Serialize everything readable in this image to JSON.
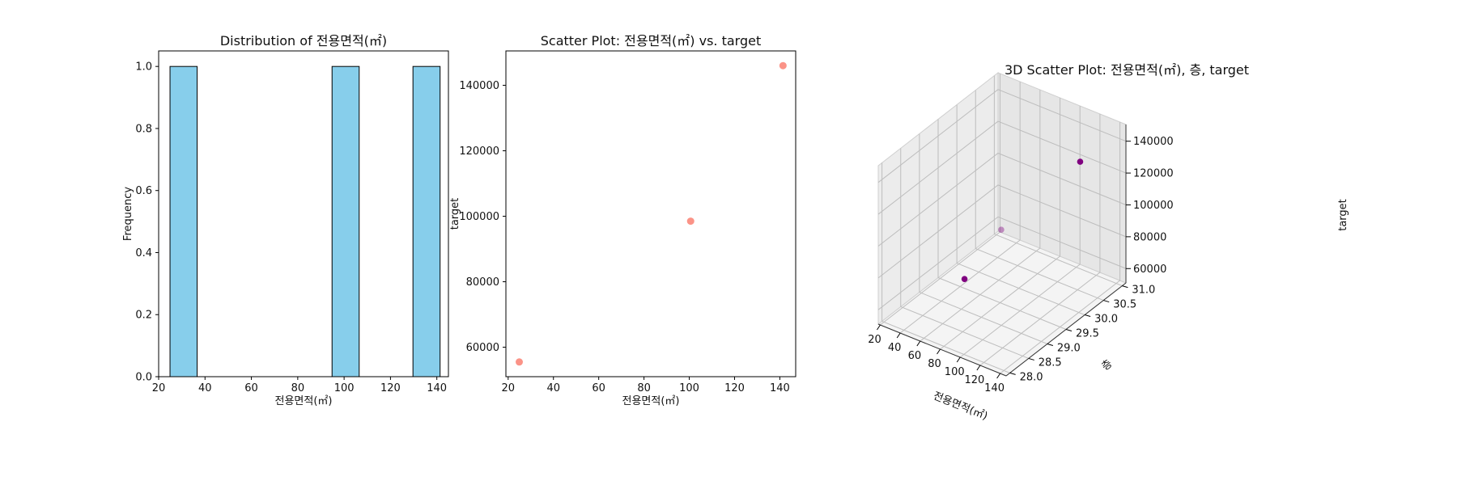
{
  "chart_data": [
    {
      "type": "bar",
      "title": "Distribution of 전용면적(㎡)",
      "xlabel": "전용면적(㎡)",
      "ylabel": "Frequency",
      "xlim": [
        20,
        145
      ],
      "ylim": [
        0,
        1.05
      ],
      "xticks": [
        "20",
        "40",
        "60",
        "80",
        "100",
        "120",
        "140"
      ],
      "yticks": [
        "0.0",
        "0.2",
        "0.4",
        "0.6",
        "0.8",
        "1.0"
      ],
      "bins": [
        {
          "start": 24.9,
          "end": 36.6,
          "count": 1
        },
        {
          "start": 94.8,
          "end": 106.5,
          "count": 1
        },
        {
          "start": 129.7,
          "end": 141.4,
          "count": 1
        }
      ],
      "colors": {
        "fill": "#87ceeb",
        "edge": "#000000"
      }
    },
    {
      "type": "scatter",
      "title": "Scatter Plot: 전용면적(㎡) vs. target",
      "xlabel": "전용면적(㎡)",
      "ylabel": "target",
      "xlim": [
        19,
        147
      ],
      "ylim": [
        51000,
        150500
      ],
      "xticks": [
        "20",
        "40",
        "60",
        "80",
        "100",
        "120",
        "140"
      ],
      "yticks": [
        "60000",
        "80000",
        "100000",
        "120000",
        "140000"
      ],
      "points": [
        {
          "x": 24.9,
          "y": 55500
        },
        {
          "x": 100.6,
          "y": 98500
        },
        {
          "x": 141.4,
          "y": 146000
        }
      ],
      "colors": {
        "point": "#fa8072"
      }
    },
    {
      "type": "scatter",
      "title": "3D Scatter Plot: 전용면적(㎡), 층, target",
      "xlabel": "전용면적(㎡)",
      "ylabel": "층",
      "zlabel": "target",
      "xticks": [
        "20",
        "40",
        "60",
        "80",
        "100",
        "120",
        "140"
      ],
      "yticks": [
        "28.0",
        "28.5",
        "29.0",
        "29.5",
        "30.0",
        "30.5",
        "31.0"
      ],
      "zticks": [
        "60000",
        "80000",
        "100000",
        "120000",
        "140000"
      ],
      "points": [
        {
          "x": 24.9,
          "y": 31.0,
          "z": 55500
        },
        {
          "x": 100.6,
          "y": 28.0,
          "z": 98500
        },
        {
          "x": 141.4,
          "y": 30.0,
          "z": 146000
        }
      ],
      "colors": {
        "point": "#800080"
      }
    }
  ]
}
